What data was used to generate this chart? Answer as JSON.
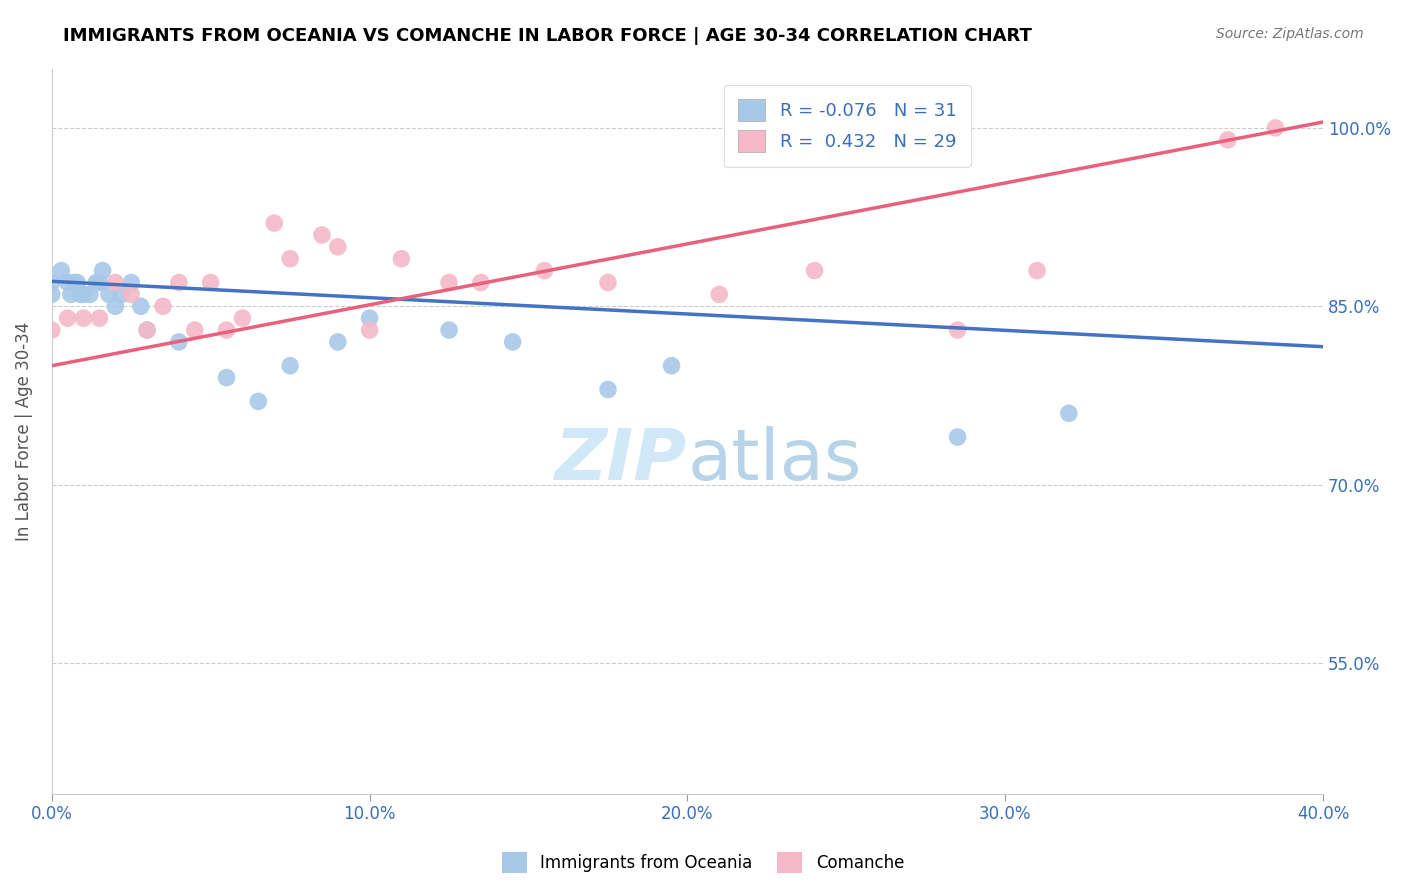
{
  "title": "IMMIGRANTS FROM OCEANIA VS COMANCHE IN LABOR FORCE | AGE 30-34 CORRELATION CHART",
  "source_text": "Source: ZipAtlas.com",
  "ylabel": "In Labor Force | Age 30-34",
  "xlim": [
    0.0,
    0.4
  ],
  "ylim": [
    0.44,
    1.05
  ],
  "xtick_labels": [
    "0.0%",
    "10.0%",
    "20.0%",
    "30.0%",
    "40.0%"
  ],
  "xtick_values": [
    0.0,
    0.1,
    0.2,
    0.3,
    0.4
  ],
  "ytick_labels": [
    "55.0%",
    "70.0%",
    "85.0%",
    "100.0%"
  ],
  "ytick_values": [
    0.55,
    0.7,
    0.85,
    1.0
  ],
  "legend_labels": [
    "Immigrants from Oceania",
    "Comanche"
  ],
  "legend_r": [
    "-0.076",
    "0.432"
  ],
  "legend_n": [
    "31",
    "29"
  ],
  "blue_color": "#a8c8e8",
  "pink_color": "#f4b8c8",
  "blue_line_color": "#4472c4",
  "pink_line_color": "#e8607a",
  "watermark_color": "#d0e8f8",
  "blue_scatter_x": [
    0.0,
    0.0,
    0.003,
    0.005,
    0.006,
    0.007,
    0.008,
    0.009,
    0.01,
    0.012,
    0.014,
    0.015,
    0.016,
    0.018,
    0.02,
    0.022,
    0.025,
    0.028,
    0.03,
    0.04,
    0.055,
    0.065,
    0.075,
    0.09,
    0.1,
    0.125,
    0.145,
    0.175,
    0.195,
    0.285,
    0.32
  ],
  "blue_scatter_y": [
    0.87,
    0.86,
    0.88,
    0.87,
    0.86,
    0.87,
    0.87,
    0.86,
    0.86,
    0.86,
    0.87,
    0.87,
    0.88,
    0.86,
    0.85,
    0.86,
    0.87,
    0.85,
    0.83,
    0.82,
    0.79,
    0.77,
    0.8,
    0.82,
    0.84,
    0.83,
    0.82,
    0.78,
    0.8,
    0.74,
    0.76
  ],
  "pink_scatter_x": [
    0.0,
    0.005,
    0.01,
    0.015,
    0.02,
    0.025,
    0.03,
    0.035,
    0.04,
    0.045,
    0.05,
    0.055,
    0.06,
    0.07,
    0.075,
    0.085,
    0.09,
    0.1,
    0.11,
    0.125,
    0.135,
    0.155,
    0.175,
    0.21,
    0.24,
    0.285,
    0.31,
    0.37,
    0.385
  ],
  "pink_scatter_y": [
    0.83,
    0.84,
    0.84,
    0.84,
    0.87,
    0.86,
    0.83,
    0.85,
    0.87,
    0.83,
    0.87,
    0.83,
    0.84,
    0.92,
    0.89,
    0.91,
    0.9,
    0.83,
    0.89,
    0.87,
    0.87,
    0.88,
    0.87,
    0.86,
    0.88,
    0.83,
    0.88,
    0.99,
    1.0
  ],
  "blue_trend_x": [
    0.0,
    0.4
  ],
  "blue_trend_y": [
    0.871,
    0.816
  ],
  "pink_trend_x": [
    0.0,
    0.4
  ],
  "pink_trend_y": [
    0.8,
    1.005
  ]
}
